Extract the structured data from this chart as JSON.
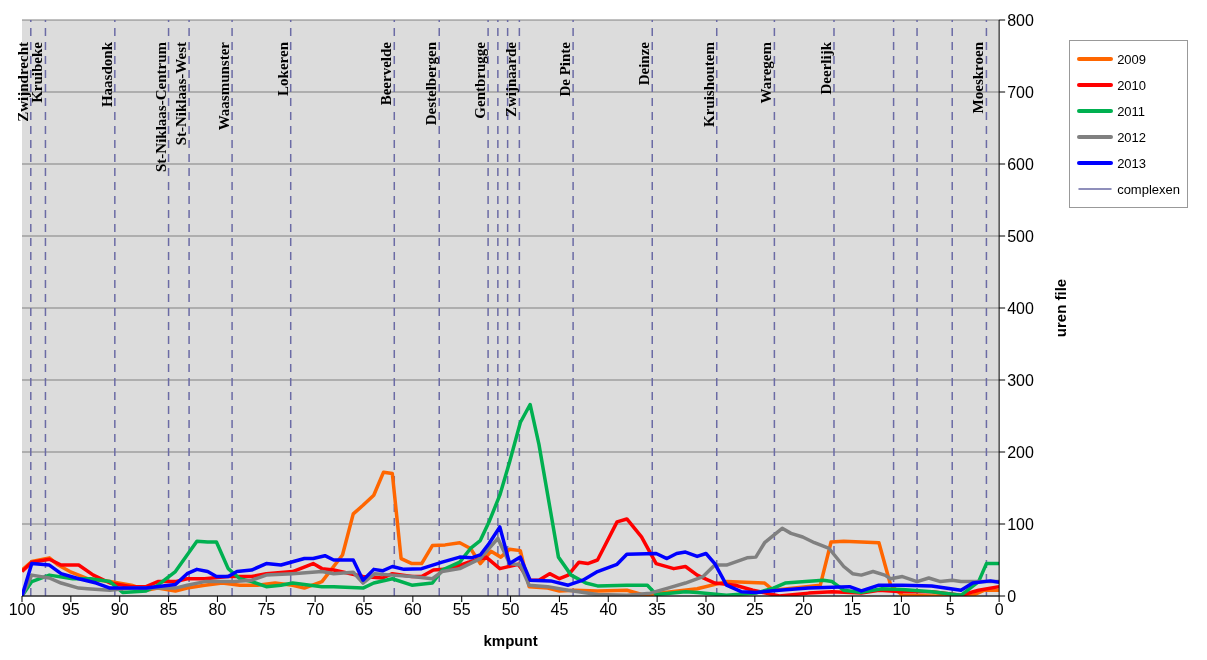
{
  "chart_data": {
    "type": "line",
    "xlabel": "kmpunt",
    "ylabel": "uren file",
    "xlim": [
      100,
      0
    ],
    "xticks": [
      100,
      95,
      90,
      85,
      80,
      75,
      70,
      65,
      60,
      55,
      50,
      45,
      40,
      35,
      30,
      25,
      20,
      15,
      10,
      5,
      0
    ],
    "ylim": [
      0,
      800
    ],
    "yticks": [
      0,
      100,
      200,
      300,
      400,
      500,
      600,
      700,
      800
    ],
    "grid": "y",
    "legend": "right",
    "line_style": "solid",
    "marker": "none",
    "series": [
      {
        "name": "2009",
        "color": "#ff6600",
        "x": [
          100,
          99,
          97.2,
          96.3,
          95.1,
          93.3,
          91,
          88.8,
          87.3,
          86.1,
          84.3,
          83.1,
          81.3,
          79.5,
          77.7,
          75.9,
          74.1,
          72.3,
          71.1,
          69.3,
          67.2,
          66.1,
          65.1,
          64,
          63,
          62.1,
          61.2,
          60.1,
          59.1,
          58,
          56.7,
          55.2,
          54.1,
          53.1,
          52,
          51,
          50.1,
          49,
          48.1,
          46.2,
          45,
          43.5,
          41.1,
          38.1,
          36.3,
          34.2,
          30.9,
          27.9,
          24,
          23.1,
          18.3,
          17.2,
          15.9,
          12.3,
          11.1,
          9.9,
          6.9,
          3.9,
          2.7,
          1.5,
          0
        ],
        "values": [
          36,
          48,
          53,
          43,
          34,
          24,
          20,
          15,
          8,
          11,
          7,
          11,
          15,
          18,
          15,
          15,
          18,
          15,
          11,
          20,
          57,
          114,
          126,
          140,
          172,
          170,
          52,
          45,
          45,
          70,
          71,
          74,
          66,
          45,
          62,
          54,
          65,
          63,
          13,
          11,
          7,
          8,
          7,
          8,
          1,
          5,
          10,
          20,
          18,
          8,
          15,
          75,
          76,
          74,
          15,
          1,
          0,
          0,
          1,
          8,
          8
        ]
      },
      {
        "name": "2010",
        "color": "#ff0000",
        "x": [
          100,
          99,
          97.2,
          96,
          94.2,
          92.7,
          91,
          88.8,
          87.3,
          86.1,
          84.3,
          83.1,
          81.3,
          78.9,
          76.5,
          75,
          72.3,
          70.2,
          69.3,
          68.1,
          65.1,
          63.1,
          62.1,
          60.1,
          59.1,
          57.9,
          56.1,
          54.3,
          52.5,
          51.1,
          49.2,
          48.1,
          47.1,
          46,
          45,
          44.1,
          43,
          42.1,
          41.1,
          39.1,
          38.1,
          36.6,
          35.1,
          33.3,
          32.1,
          30.9,
          29.1,
          27,
          25.2,
          22.5,
          19.5,
          17.1,
          14.1,
          12.3,
          9.9,
          6.9,
          3.9,
          2.1,
          0
        ],
        "values": [
          34,
          47,
          51,
          43,
          43,
          29,
          18,
          13,
          13,
          20,
          20,
          24,
          24,
          27,
          27,
          31,
          34,
          45,
          38,
          36,
          27,
          25,
          31,
          27,
          27,
          36,
          38,
          47,
          54,
          38,
          44,
          22,
          22,
          31,
          24,
          29,
          47,
          45,
          50,
          103,
          107,
          82,
          45,
          38,
          41,
          29,
          18,
          15,
          8,
          0,
          4,
          6,
          4,
          8,
          6,
          6,
          1,
          8,
          13
        ]
      },
      {
        "name": "2011",
        "color": "#00b050",
        "x": [
          100,
          99,
          97.2,
          94.8,
          93,
          91,
          89.7,
          87.3,
          86.1,
          84.3,
          83.1,
          82.1,
          81,
          80.1,
          78.9,
          77.7,
          76.5,
          75,
          73.5,
          72.3,
          69.3,
          68.1,
          65.1,
          64,
          62.1,
          60.1,
          58,
          57,
          55.2,
          54.1,
          53.1,
          52.2,
          51.1,
          50.1,
          49,
          48,
          47.1,
          45.9,
          45.1,
          43.8,
          42.3,
          41.1,
          38.1,
          36,
          35.1,
          32.1,
          30.9,
          27.9,
          24.9,
          23.1,
          21.9,
          19.8,
          18,
          17.1,
          15.9,
          14.1,
          12,
          9.9,
          6.9,
          3.9,
          2.1,
          1.3,
          0
        ],
        "values": [
          0,
          20,
          29,
          24,
          24,
          20,
          5,
          7,
          15,
          34,
          57,
          76,
          75,
          75,
          38,
          24,
          20,
          13,
          15,
          18,
          13,
          13,
          11,
          18,
          24,
          15,
          18,
          36,
          47,
          66,
          77,
          103,
          140,
          186,
          241,
          266,
          211,
          117,
          54,
          29,
          18,
          14,
          15,
          15,
          2,
          6,
          5,
          1,
          4,
          11,
          18,
          20,
          22,
          20,
          8,
          5,
          10,
          9,
          6,
          1,
          20,
          45,
          45
        ]
      },
      {
        "name": "2012",
        "color": "#808080",
        "x": [
          100,
          99,
          97.2,
          96,
          94.2,
          93.3,
          91,
          88.8,
          85.8,
          84.3,
          83.1,
          81.3,
          78.3,
          76.5,
          75,
          72.3,
          69.3,
          68.1,
          66.1,
          65.1,
          63.9,
          62.1,
          60.1,
          58,
          57,
          55.2,
          53.1,
          51.3,
          50.1,
          49,
          48.1,
          46.2,
          44.1,
          41.1,
          38.1,
          35.7,
          33.9,
          32.1,
          30.3,
          29.1,
          27.9,
          25.8,
          24.9,
          24,
          22.2,
          21.3,
          20.1,
          18.9,
          17.4,
          15.9,
          15,
          14.1,
          12.9,
          11.7,
          11.1,
          9.9,
          8.4,
          7.2,
          6,
          4.8,
          3.9,
          2.1,
          0
        ],
        "values": [
          0,
          29,
          25,
          18,
          11,
          10,
          8,
          11,
          11,
          11,
          15,
          20,
          20,
          22,
          29,
          31,
          34,
          31,
          33,
          18,
          31,
          29,
          27,
          24,
          34,
          38,
          52,
          80,
          45,
          43,
          15,
          13,
          8,
          2,
          1,
          4,
          11,
          18,
          27,
          43,
          43,
          53,
          54,
          74,
          94,
          87,
          82,
          74,
          66,
          41,
          31,
          29,
          34,
          29,
          24,
          27,
          20,
          25,
          20,
          22,
          20,
          20,
          20
        ]
      },
      {
        "name": "2013",
        "color": "#0000ff",
        "x": [
          100,
          99,
          97.2,
          96,
          94.2,
          92.4,
          91,
          88.8,
          87.3,
          84.3,
          83.1,
          82.1,
          81,
          80.1,
          78.9,
          78,
          76.5,
          75,
          73.5,
          71.1,
          70.2,
          69,
          68.1,
          66.1,
          65.1,
          64,
          63.1,
          62.1,
          60.9,
          59.1,
          57,
          55.2,
          54,
          53.1,
          52.2,
          51.1,
          50.1,
          49,
          48,
          45.9,
          44.1,
          42.6,
          41.1,
          39.1,
          38.1,
          35.1,
          34,
          33,
          32.1,
          30.9,
          30,
          29.1,
          27.9,
          26.4,
          24.9,
          22.5,
          19.5,
          17.1,
          15.3,
          14.1,
          12.3,
          9.9,
          6.9,
          3.9,
          2.7,
          0.9,
          0
        ],
        "values": [
          0,
          45,
          43,
          31,
          24,
          18,
          11,
          11,
          11,
          16,
          31,
          37,
          34,
          27,
          27,
          34,
          36,
          45,
          43,
          52,
          52,
          56,
          50,
          50,
          22,
          37,
          35,
          41,
          37,
          38,
          47,
          54,
          53,
          57,
          73,
          96,
          45,
          54,
          22,
          21,
          15,
          22,
          34,
          44,
          58,
          59,
          52,
          59,
          61,
          55,
          59,
          45,
          15,
          6,
          5,
          8,
          11,
          12,
          13,
          7,
          15,
          15,
          14,
          8,
          18,
          21,
          19
        ]
      }
    ],
    "ref_lines": [
      {
        "axis": "x",
        "value": 99.1,
        "label": "Zwijndrecht",
        "color": "#6b6ba5",
        "line_style": "dashed"
      },
      {
        "axis": "x",
        "value": 97.6,
        "label": "Kruibeke",
        "color": "#6b6ba5",
        "line_style": "dashed"
      },
      {
        "axis": "x",
        "value": 90.5,
        "label": "Haasdonk",
        "color": "#6b6ba5",
        "line_style": "dashed"
      },
      {
        "axis": "x",
        "value": 85,
        "label": "St-Niklaas-Centrum",
        "color": "#6b6ba5",
        "line_style": "dashed"
      },
      {
        "axis": "x",
        "value": 82.9,
        "label": "St-Niklaas-West",
        "color": "#6b6ba5",
        "line_style": "dashed"
      },
      {
        "axis": "x",
        "value": 78.5,
        "label": "Waasmunster",
        "color": "#6b6ba5",
        "line_style": "dashed"
      },
      {
        "axis": "x",
        "value": 72.5,
        "label": "Lokeren",
        "color": "#6b6ba5",
        "line_style": "dashed"
      },
      {
        "axis": "x",
        "value": 61.9,
        "label": "Beervelde",
        "color": "#6b6ba5",
        "line_style": "dashed"
      },
      {
        "axis": "x",
        "value": 57.3,
        "label": "Destelbergen",
        "color": "#6b6ba5",
        "line_style": "dashed"
      },
      {
        "axis": "x",
        "value": 52.3,
        "label": "Gentbrugge",
        "color": "#6b6ba5",
        "line_style": "dashed"
      },
      {
        "axis": "x",
        "value": 51.3,
        "color": "#6b6ba5",
        "line_style": "dashed"
      },
      {
        "axis": "x",
        "value": 50.3,
        "color": "#6b6ba5",
        "line_style": "dashed"
      },
      {
        "axis": "x",
        "value": 49.1,
        "label": "Zwijnaarde",
        "color": "#6b6ba5",
        "line_style": "dashed"
      },
      {
        "axis": "x",
        "value": 43.6,
        "label": "De Pinte",
        "color": "#6b6ba5",
        "line_style": "dashed"
      },
      {
        "axis": "x",
        "value": 35.5,
        "label": "Deinze",
        "color": "#6b6ba5",
        "line_style": "dashed"
      },
      {
        "axis": "x",
        "value": 28.9,
        "label": "Kruishoutem",
        "color": "#6b6ba5",
        "line_style": "dashed"
      },
      {
        "axis": "x",
        "value": 23,
        "label": "Waregem",
        "color": "#6b6ba5",
        "line_style": "dashed"
      },
      {
        "axis": "x",
        "value": 16.9,
        "label": "Deerlijk",
        "color": "#6b6ba5",
        "line_style": "dashed"
      },
      {
        "axis": "x",
        "value": 10.8,
        "color": "#6b6ba5",
        "line_style": "dashed"
      },
      {
        "axis": "x",
        "value": 8.4,
        "color": "#6b6ba5",
        "line_style": "dashed"
      },
      {
        "axis": "x",
        "value": 4.8,
        "color": "#6b6ba5",
        "line_style": "dashed"
      },
      {
        "axis": "x",
        "value": 1.3,
        "label": "Moeskroen",
        "color": "#6b6ba5",
        "line_style": "dashed"
      }
    ],
    "annotations": [
      "complexen"
    ]
  }
}
